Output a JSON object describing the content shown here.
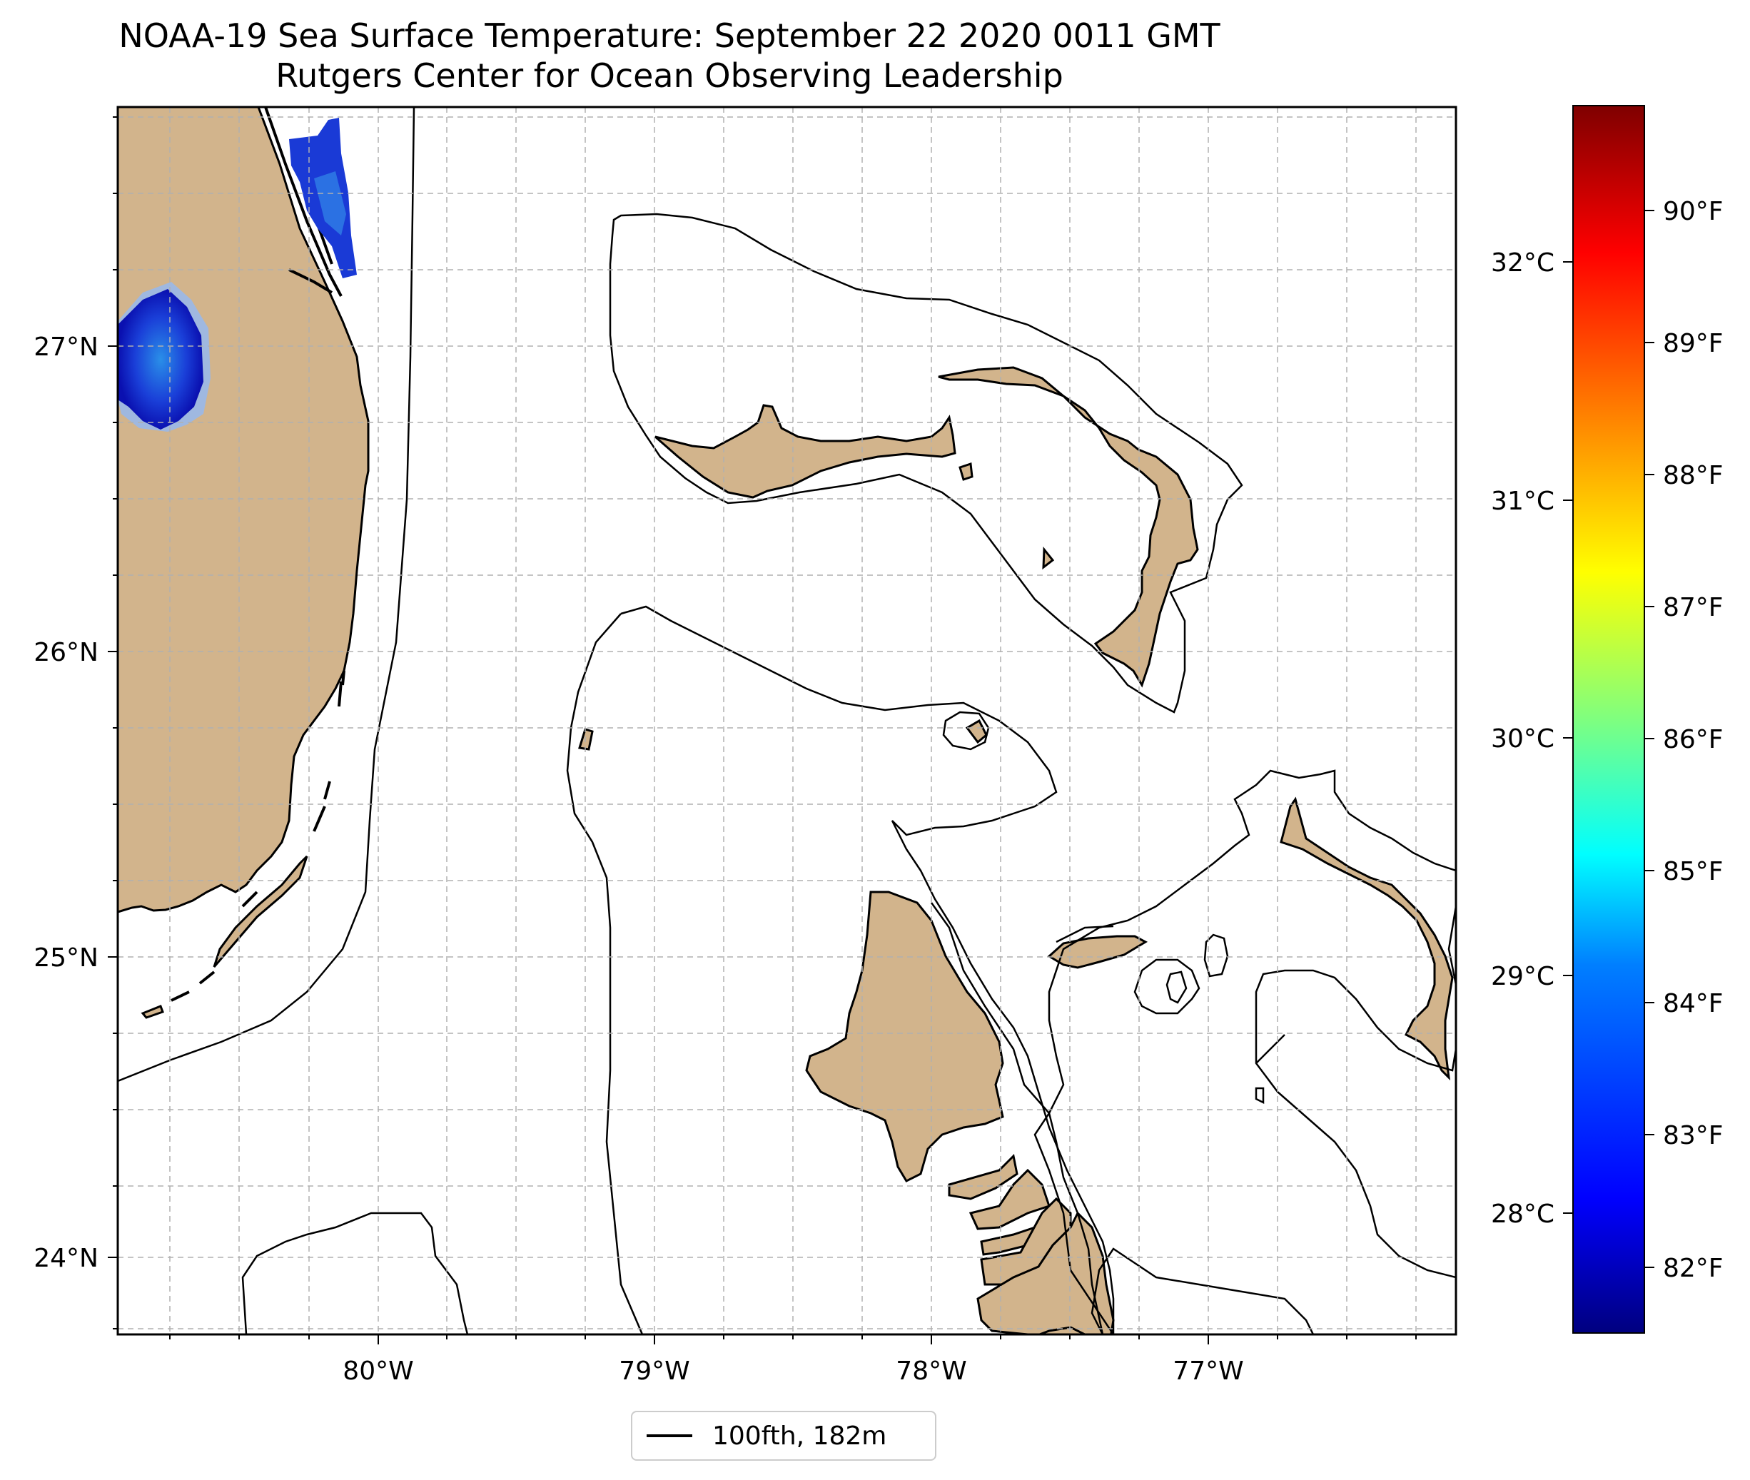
{
  "title": "NOAA-19 Sea Surface Temperature: September 22 2020 0011 GMT",
  "subtitle": "Rutgers Center for Ocean Observing Leadership",
  "map": {
    "lon_labels": [
      "80°W",
      "79°W",
      "78°W",
      "77°W"
    ],
    "lat_labels": [
      "27°N",
      "26°N",
      "25°N",
      "24°N"
    ],
    "land_color": "#D2B48C",
    "ocean_color": "#FFFFFF",
    "grid": "on, dashed light gray",
    "contour_color": "#000000"
  },
  "colorbar": {
    "fahrenheit_labels": [
      "90°F",
      "89°F",
      "88°F",
      "87°F",
      "86°F",
      "85°F",
      "84°F",
      "83°F",
      "82°F"
    ],
    "celsius_labels": [
      "32°C",
      "31°C",
      "30°C",
      "29°C",
      "28°C"
    ],
    "colormap": "jet",
    "colors": [
      "#00007F",
      "#0000FF",
      "#007FFF",
      "#00FFFF",
      "#7FFF7F",
      "#FFFF00",
      "#FF7F00",
      "#FF0000",
      "#7F0000"
    ]
  },
  "legend": {
    "label": "100fth, 182m"
  }
}
